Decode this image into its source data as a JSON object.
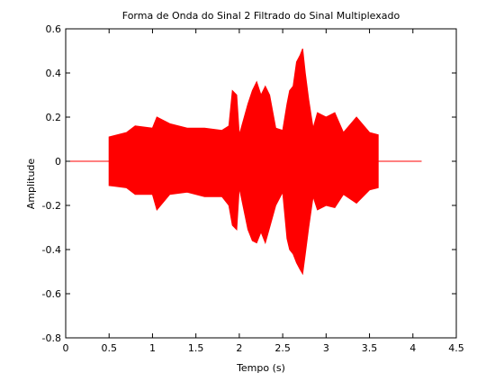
{
  "chart_data": {
    "type": "line",
    "title": "Forma de Onda do Sinal 2 Filtrado do Sinal Multiplexado",
    "xlabel": "Tempo (s)",
    "ylabel": "Amplitude",
    "xlim": [
      0,
      4.5
    ],
    "ylim": [
      -0.8,
      0.6
    ],
    "xticks": [
      0,
      0.5,
      1,
      1.5,
      2,
      2.5,
      3,
      3.5,
      4,
      4.5
    ],
    "xtick_labels": [
      "0",
      "0.5",
      "1",
      "1.5",
      "2",
      "2.5",
      "3",
      "3.5",
      "4",
      "4.5"
    ],
    "yticks": [
      -0.8,
      -0.6,
      -0.4,
      -0.2,
      0,
      0.2,
      0.4,
      0.6
    ],
    "ytick_labels": [
      "-0.8",
      "-0.6",
      "-0.4",
      "-0.2",
      "0",
      "0.2",
      "0.4",
      "0.6"
    ],
    "grid": false,
    "legend": "none",
    "series": [
      {
        "color": "#ff0000",
        "envelope": {
          "x": [
            0,
            0.5,
            0.5,
            0.7,
            0.8,
            1.0,
            1.05,
            1.2,
            1.4,
            1.6,
            1.8,
            1.88,
            1.92,
            1.97,
            2.0,
            2.1,
            2.15,
            2.2,
            2.25,
            2.3,
            2.35,
            2.42,
            2.5,
            2.55,
            2.58,
            2.62,
            2.66,
            2.7,
            2.73,
            2.76,
            2.8,
            2.85,
            2.9,
            3.0,
            3.1,
            3.2,
            3.35,
            3.5,
            3.6,
            3.6,
            4.1
          ],
          "upper": [
            0,
            0,
            0.11,
            0.13,
            0.16,
            0.15,
            0.2,
            0.17,
            0.15,
            0.15,
            0.14,
            0.16,
            0.32,
            0.3,
            0.12,
            0.26,
            0.32,
            0.36,
            0.3,
            0.34,
            0.3,
            0.15,
            0.14,
            0.26,
            0.32,
            0.34,
            0.45,
            0.48,
            0.51,
            0.4,
            0.28,
            0.15,
            0.22,
            0.2,
            0.22,
            0.13,
            0.2,
            0.13,
            0.12,
            0,
            0
          ],
          "lower": [
            0,
            0,
            -0.11,
            -0.12,
            -0.15,
            -0.15,
            -0.22,
            -0.15,
            -0.14,
            -0.16,
            -0.16,
            -0.2,
            -0.29,
            -0.31,
            -0.12,
            -0.31,
            -0.36,
            -0.37,
            -0.32,
            -0.37,
            -0.3,
            -0.2,
            -0.14,
            -0.35,
            -0.4,
            -0.42,
            -0.46,
            -0.49,
            -0.51,
            -0.42,
            -0.3,
            -0.16,
            -0.22,
            -0.2,
            -0.21,
            -0.15,
            -0.19,
            -0.13,
            -0.12,
            0,
            0
          ]
        }
      }
    ]
  }
}
